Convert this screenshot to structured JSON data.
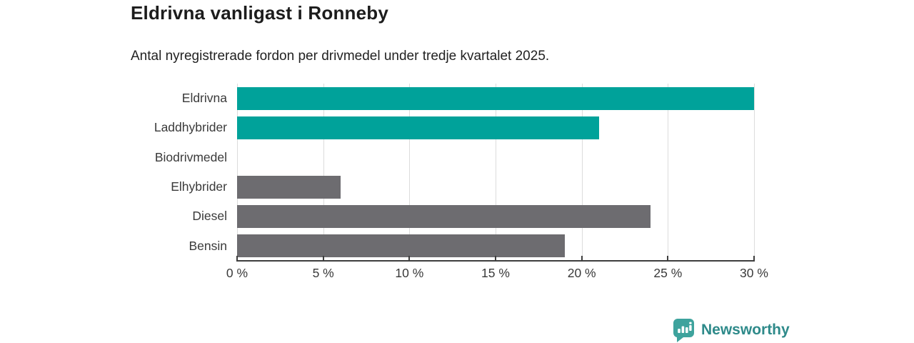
{
  "header": {
    "title": "Eldrivna vanligast i Ronneby",
    "subtitle": "Antal nyregistrerade fordon per drivmedel under tredje kvartalet 2025."
  },
  "chart_data": {
    "type": "bar",
    "orientation": "horizontal",
    "title": "Eldrivna vanligast i Ronneby",
    "subtitle": "Antal nyregistrerade fordon per drivmedel under tredje kvartalet 2025.",
    "categories": [
      "Eldrivna",
      "Laddhybrider",
      "Biodrivmedel",
      "Elhybrider",
      "Diesel",
      "Bensin"
    ],
    "values": [
      30,
      21,
      0,
      6,
      24,
      19
    ],
    "unit": "%",
    "bar_colors": [
      "#00a29a",
      "#00a29a",
      "#00a29a",
      "#6d6c70",
      "#6d6c70",
      "#6d6c70"
    ],
    "xlim": [
      0,
      30
    ],
    "xticks": [
      0,
      5,
      10,
      15,
      20,
      25,
      30
    ],
    "xtick_suffix": " %",
    "grid": true,
    "legend": "none",
    "gridline_color": "#dcdcdc"
  },
  "footer": {
    "brand_name": "Newsworthy",
    "brand_color": "#2e8a8a",
    "icon_color": "#3ea39d"
  }
}
